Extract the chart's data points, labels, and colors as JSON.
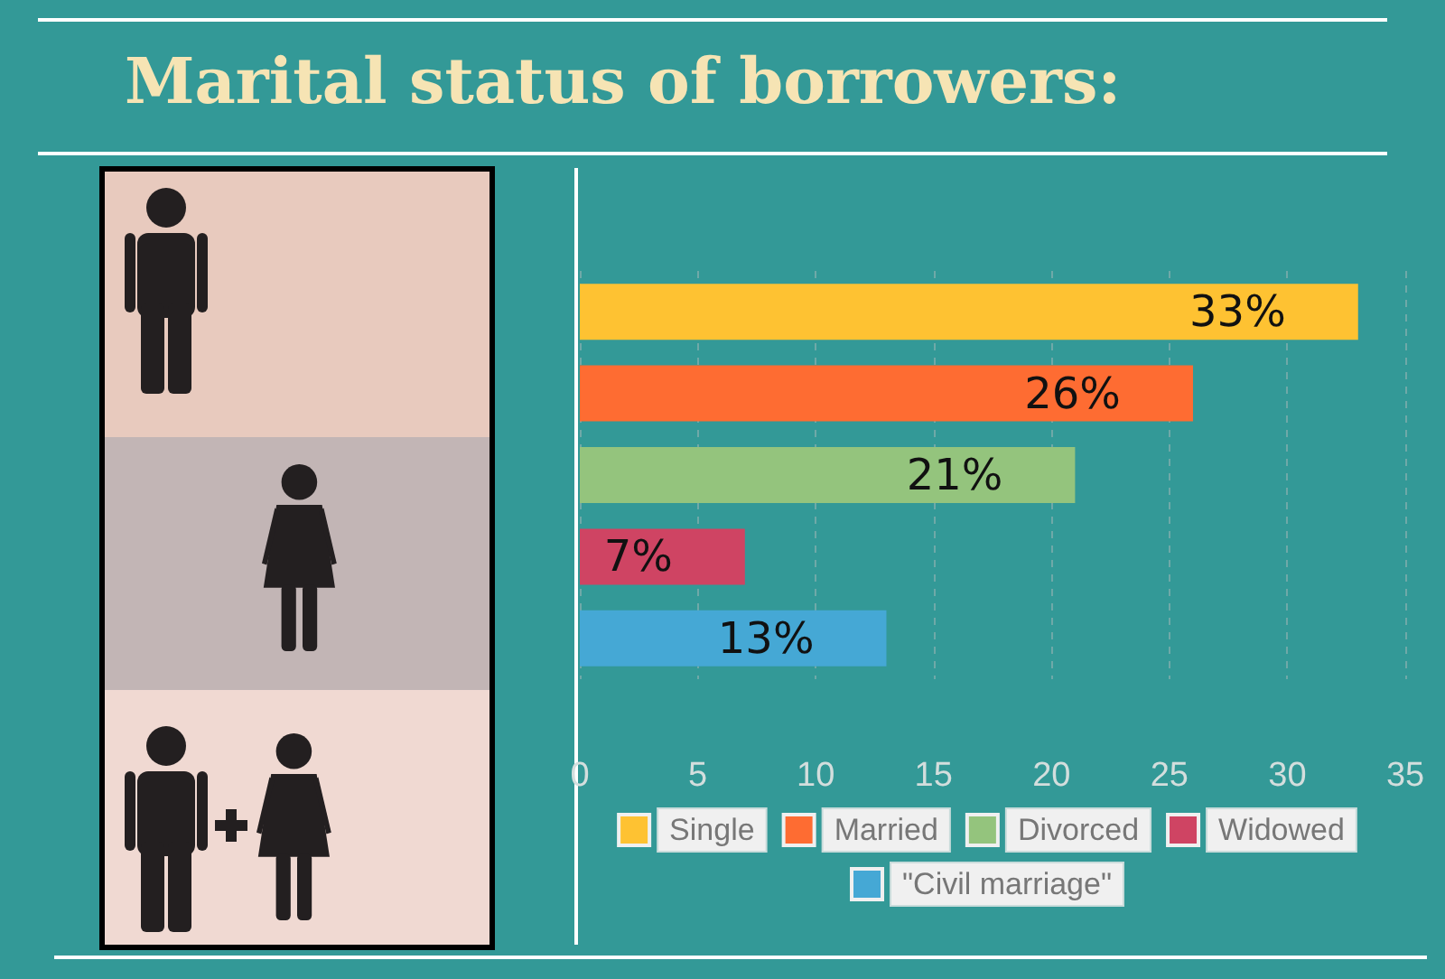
{
  "chart_data": {
    "type": "bar",
    "title": "Marital status of borrowers:",
    "orientation": "horizontal",
    "categories": [
      null,
      null,
      null,
      null,
      null
    ],
    "series": [
      {
        "name": "Single",
        "color": "#fec232",
        "values": [
          33,
          null,
          null,
          null,
          null
        ],
        "value_labels": [
          "33%",
          null,
          null,
          null,
          null
        ]
      },
      {
        "name": "Married",
        "color": "#fe6c32",
        "values": [
          null,
          26,
          null,
          null,
          null
        ],
        "value_labels": [
          null,
          "26%",
          null,
          null,
          null
        ]
      },
      {
        "name": "Divorced",
        "color": "#94c47d",
        "values": [
          null,
          null,
          21,
          null,
          null
        ],
        "value_labels": [
          null,
          null,
          "21%",
          null,
          null
        ]
      },
      {
        "name": "Widowed",
        "color": "#cf4463",
        "values": [
          null,
          null,
          null,
          7,
          null
        ],
        "value_labels": [
          null,
          null,
          null,
          "7%",
          null
        ]
      },
      {
        "name": "\"Civil marriage\"",
        "color": "#45a8d5",
        "values": [
          null,
          null,
          null,
          null,
          13
        ],
        "value_labels": [
          null,
          null,
          null,
          null,
          "13%"
        ]
      }
    ],
    "xlim": [
      0,
      35
    ],
    "xticks": [
      0,
      5,
      10,
      15,
      20,
      25,
      30,
      35
    ],
    "grid": "x",
    "legend": "bottom"
  }
}
